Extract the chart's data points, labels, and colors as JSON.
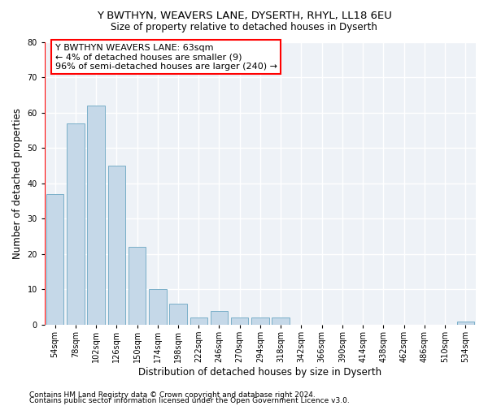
{
  "title1": "Y BWTHYN, WEAVERS LANE, DYSERTH, RHYL, LL18 6EU",
  "title2": "Size of property relative to detached houses in Dyserth",
  "xlabel": "Distribution of detached houses by size in Dyserth",
  "ylabel": "Number of detached properties",
  "categories": [
    "54sqm",
    "78sqm",
    "102sqm",
    "126sqm",
    "150sqm",
    "174sqm",
    "198sqm",
    "222sqm",
    "246sqm",
    "270sqm",
    "294sqm",
    "318sqm",
    "342sqm",
    "366sqm",
    "390sqm",
    "414sqm",
    "438sqm",
    "462sqm",
    "486sqm",
    "510sqm",
    "534sqm"
  ],
  "values": [
    37,
    57,
    62,
    45,
    22,
    10,
    6,
    2,
    4,
    2,
    2,
    2,
    0,
    0,
    0,
    0,
    0,
    0,
    0,
    0,
    1
  ],
  "bar_color": "#c5d8e8",
  "bar_edge_color": "#7aafc8",
  "annotation_line1": "Y BWTHYN WEAVERS LANE: 63sqm",
  "annotation_line2": "← 4% of detached houses are smaller (9)",
  "annotation_line3": "96% of semi-detached houses are larger (240) →",
  "annotation_box_color": "white",
  "annotation_box_edge_color": "red",
  "ylim": [
    0,
    80
  ],
  "yticks": [
    0,
    10,
    20,
    30,
    40,
    50,
    60,
    70,
    80
  ],
  "background_color": "#eef2f7",
  "grid_color": "white",
  "footer1": "Contains HM Land Registry data © Crown copyright and database right 2024.",
  "footer2": "Contains public sector information licensed under the Open Government Licence v3.0.",
  "title1_fontsize": 9.5,
  "title2_fontsize": 8.5,
  "xlabel_fontsize": 8.5,
  "ylabel_fontsize": 8.5,
  "tick_fontsize": 7,
  "annotation_fontsize": 8,
  "footer_fontsize": 6.5
}
